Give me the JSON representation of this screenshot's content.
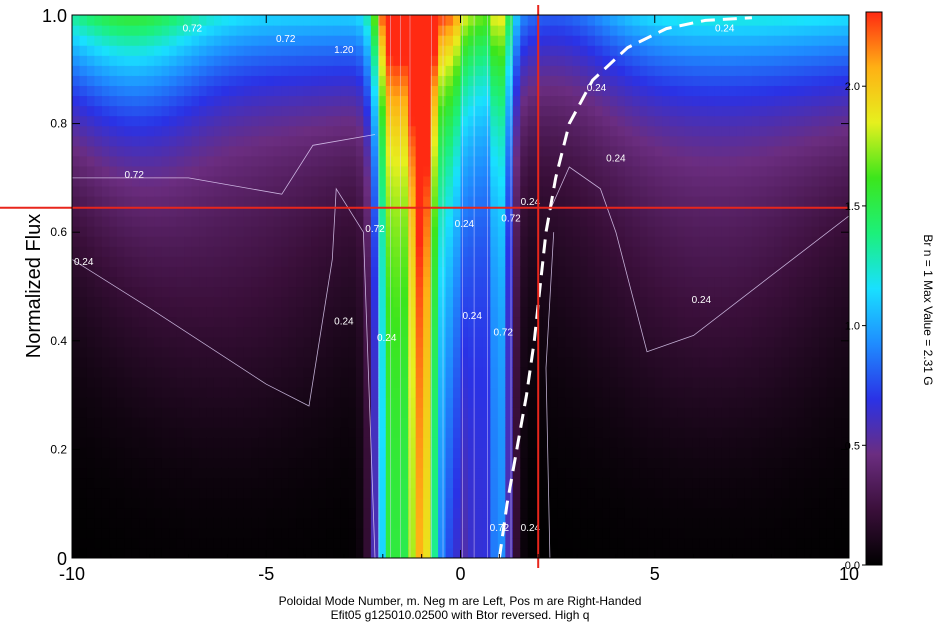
{
  "chart_data": {
    "type": "heatmap",
    "xlabel": "Poloidal Mode Number, m.  Neg m are Left, Pos m are Right-Handed",
    "subtitle": "Efit05 g125010.02500 with Btor reversed. High q",
    "ylabel": "Normalized Flux",
    "colorbar_label": "Br   n = 1   Max Value = 2.31 G",
    "xlim": [
      -10,
      10
    ],
    "ylim": [
      0,
      1
    ],
    "x_ticks": [
      "-10",
      "-5",
      "0",
      "5",
      "10"
    ],
    "x_tick_values": [
      -10,
      -5,
      0,
      5,
      10
    ],
    "y_ticks": [
      "0",
      "0.2",
      "0.4",
      "0.6",
      "0.8",
      "1.0"
    ],
    "y_tick_values": [
      0,
      0.2,
      0.4,
      0.6,
      0.8,
      1.0
    ],
    "colorbar_range": [
      0,
      2.31
    ],
    "colorbar_ticks": [
      "0.0",
      "0.5",
      "1.0",
      "1.5",
      "2.0"
    ],
    "colorbar_tick_values": [
      0,
      0.5,
      1.0,
      1.5,
      2.0
    ],
    "contour_levels": [
      0.24,
      0.72,
      1.2,
      1.68,
      2.16
    ],
    "contour_labels": [
      {
        "text": "0.72",
        "m": -6.9,
        "psi": 0.97
      },
      {
        "text": "0.72",
        "m": -4.5,
        "psi": 0.95
      },
      {
        "text": "1.20",
        "m": -3.0,
        "psi": 0.93
      },
      {
        "text": "0.24",
        "m": 6.8,
        "psi": 0.97
      },
      {
        "text": "0.24",
        "m": 3.5,
        "psi": 0.86
      },
      {
        "text": "0.24",
        "m": 4.0,
        "psi": 0.73
      },
      {
        "text": "0.72",
        "m": -8.4,
        "psi": 0.7
      },
      {
        "text": "0.24",
        "m": -9.7,
        "psi": 0.54
      },
      {
        "text": "0.24",
        "m": -3.0,
        "psi": 0.43
      },
      {
        "text": "0.24",
        "m": -1.9,
        "psi": 0.4
      },
      {
        "text": "0.72",
        "m": -2.2,
        "psi": 0.6
      },
      {
        "text": "0.24",
        "m": 6.2,
        "psi": 0.47
      },
      {
        "text": "0.24",
        "m": 0.3,
        "psi": 0.44
      },
      {
        "text": "0.72",
        "m": 1.1,
        "psi": 0.41
      },
      {
        "text": "0.24",
        "m": 0.1,
        "psi": 0.61
      },
      {
        "text": "0.72",
        "m": 1.3,
        "psi": 0.62
      },
      {
        "text": "0.24",
        "m": 1.8,
        "psi": 0.65
      },
      {
        "text": "0.24",
        "m": 1.8,
        "psi": 0.05
      },
      {
        "text": "0.72",
        "m": 1.0,
        "psi": 0.05
      }
    ],
    "reference_lines": {
      "vertical_m": 2,
      "horizontal_psi": 0.645,
      "color": "#e8261c"
    },
    "q_profile_curve": {
      "style": "dashed",
      "color": "#ffffff",
      "points": [
        [
          1.0,
          0.0
        ],
        [
          1.2,
          0.1
        ],
        [
          1.45,
          0.2
        ],
        [
          1.7,
          0.3
        ],
        [
          1.9,
          0.4
        ],
        [
          2.05,
          0.5
        ],
        [
          2.2,
          0.6
        ],
        [
          2.45,
          0.7
        ],
        [
          2.8,
          0.8
        ],
        [
          3.4,
          0.88
        ],
        [
          4.3,
          0.94
        ],
        [
          5.3,
          0.975
        ],
        [
          6.3,
          0.99
        ],
        [
          7.5,
          0.995
        ]
      ]
    },
    "colormap": [
      "#000000",
      "#3a0f3a",
      "#6b2d80",
      "#2a32e6",
      "#1f8cff",
      "#19e0ff",
      "#1cf07a",
      "#3ce61c",
      "#e6f01e",
      "#ffb014",
      "#ff2a12"
    ]
  }
}
